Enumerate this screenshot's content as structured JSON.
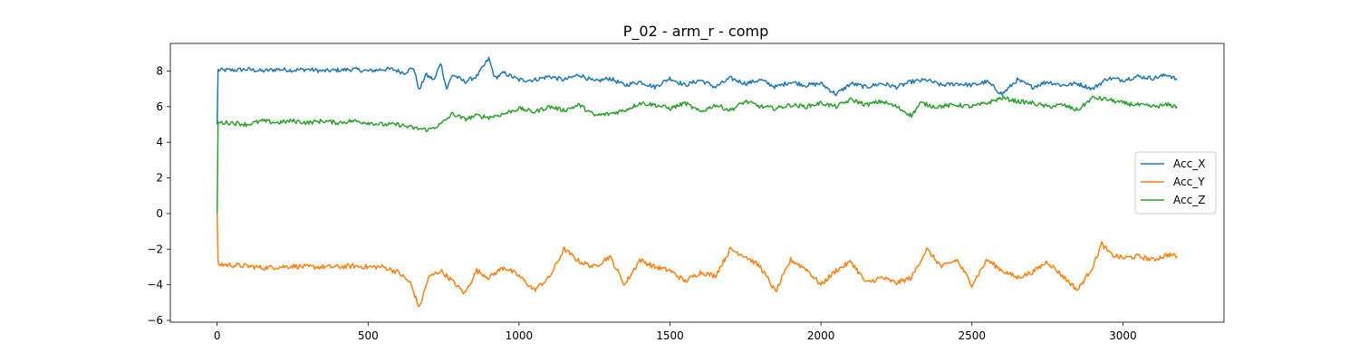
{
  "chart_data": {
    "type": "line",
    "title": "P_02 - arm_r - comp",
    "xlabel": "",
    "ylabel": "",
    "xlim": [
      -155,
      3335
    ],
    "ylim": [
      -6.1,
      9.55
    ],
    "xticks": [
      0,
      500,
      1000,
      1500,
      2000,
      2500,
      3000
    ],
    "yticks": [
      -6,
      -4,
      -2,
      0,
      2,
      4,
      6,
      8
    ],
    "ytick_labels": [
      "−6",
      "−4",
      "−2",
      "0",
      "2",
      "4",
      "6",
      "8"
    ],
    "grid": false,
    "legend_position": "center-right",
    "series": [
      {
        "name": "Acc_X",
        "color": "#1f77b4",
        "points": [
          [
            0,
            5.0
          ],
          [
            3,
            8.05
          ],
          [
            50,
            8.05
          ],
          [
            100,
            8.1
          ],
          [
            150,
            8.0
          ],
          [
            200,
            8.1
          ],
          [
            250,
            8.05
          ],
          [
            300,
            8.1
          ],
          [
            350,
            8.0
          ],
          [
            400,
            8.05
          ],
          [
            450,
            8.1
          ],
          [
            500,
            8.0
          ],
          [
            550,
            8.1
          ],
          [
            580,
            8.1
          ],
          [
            620,
            7.9
          ],
          [
            650,
            8.2
          ],
          [
            670,
            6.9
          ],
          [
            690,
            7.8
          ],
          [
            720,
            7.5
          ],
          [
            740,
            8.5
          ],
          [
            760,
            7.0
          ],
          [
            780,
            7.8
          ],
          [
            820,
            7.4
          ],
          [
            860,
            7.7
          ],
          [
            900,
            8.7
          ],
          [
            920,
            7.6
          ],
          [
            950,
            7.9
          ],
          [
            1000,
            7.5
          ],
          [
            1050,
            7.5
          ],
          [
            1100,
            7.7
          ],
          [
            1150,
            7.5
          ],
          [
            1200,
            7.8
          ],
          [
            1250,
            7.4
          ],
          [
            1300,
            7.6
          ],
          [
            1350,
            7.2
          ],
          [
            1400,
            7.4
          ],
          [
            1450,
            7.1
          ],
          [
            1500,
            7.6
          ],
          [
            1550,
            7.2
          ],
          [
            1600,
            7.5
          ],
          [
            1650,
            7.1
          ],
          [
            1700,
            7.6
          ],
          [
            1750,
            7.3
          ],
          [
            1800,
            7.5
          ],
          [
            1850,
            7.1
          ],
          [
            1900,
            7.4
          ],
          [
            1950,
            7.2
          ],
          [
            2000,
            7.3
          ],
          [
            2050,
            6.7
          ],
          [
            2100,
            7.3
          ],
          [
            2150,
            7.1
          ],
          [
            2200,
            7.3
          ],
          [
            2250,
            7.1
          ],
          [
            2300,
            7.4
          ],
          [
            2350,
            7.5
          ],
          [
            2400,
            7.2
          ],
          [
            2450,
            7.3
          ],
          [
            2500,
            7.2
          ],
          [
            2550,
            7.4
          ],
          [
            2600,
            6.7
          ],
          [
            2650,
            7.5
          ],
          [
            2700,
            7.1
          ],
          [
            2750,
            7.4
          ],
          [
            2800,
            7.2
          ],
          [
            2850,
            7.3
          ],
          [
            2900,
            7.0
          ],
          [
            2950,
            7.6
          ],
          [
            3000,
            7.5
          ],
          [
            3050,
            7.7
          ],
          [
            3100,
            7.6
          ],
          [
            3150,
            7.8
          ],
          [
            3180,
            7.5
          ]
        ]
      },
      {
        "name": "Acc_Y",
        "color": "#ff7f0e",
        "points": [
          [
            0,
            0.0
          ],
          [
            3,
            -2.85
          ],
          [
            50,
            -2.9
          ],
          [
            100,
            -2.95
          ],
          [
            150,
            -3.05
          ],
          [
            200,
            -3.0
          ],
          [
            250,
            -2.95
          ],
          [
            300,
            -3.0
          ],
          [
            350,
            -3.0
          ],
          [
            400,
            -3.0
          ],
          [
            450,
            -2.95
          ],
          [
            500,
            -3.0
          ],
          [
            550,
            -3.0
          ],
          [
            600,
            -3.3
          ],
          [
            640,
            -3.9
          ],
          [
            670,
            -5.3
          ],
          [
            700,
            -3.6
          ],
          [
            740,
            -3.2
          ],
          [
            780,
            -3.8
          ],
          [
            820,
            -4.5
          ],
          [
            860,
            -3.2
          ],
          [
            900,
            -3.6
          ],
          [
            950,
            -3.0
          ],
          [
            1000,
            -3.5
          ],
          [
            1050,
            -4.3
          ],
          [
            1100,
            -3.6
          ],
          [
            1150,
            -2.0
          ],
          [
            1200,
            -2.7
          ],
          [
            1250,
            -3.0
          ],
          [
            1300,
            -2.4
          ],
          [
            1350,
            -4.0
          ],
          [
            1400,
            -2.6
          ],
          [
            1450,
            -3.0
          ],
          [
            1500,
            -3.2
          ],
          [
            1550,
            -3.8
          ],
          [
            1600,
            -3.3
          ],
          [
            1650,
            -3.5
          ],
          [
            1700,
            -2.0
          ],
          [
            1750,
            -2.4
          ],
          [
            1800,
            -3.0
          ],
          [
            1850,
            -4.4
          ],
          [
            1900,
            -2.6
          ],
          [
            1950,
            -3.1
          ],
          [
            2000,
            -4.0
          ],
          [
            2050,
            -3.2
          ],
          [
            2100,
            -2.7
          ],
          [
            2150,
            -3.9
          ],
          [
            2200,
            -3.6
          ],
          [
            2250,
            -3.9
          ],
          [
            2300,
            -3.6
          ],
          [
            2350,
            -2.0
          ],
          [
            2400,
            -3.0
          ],
          [
            2450,
            -2.6
          ],
          [
            2500,
            -4.0
          ],
          [
            2550,
            -2.6
          ],
          [
            2600,
            -3.2
          ],
          [
            2650,
            -3.6
          ],
          [
            2700,
            -3.3
          ],
          [
            2750,
            -2.7
          ],
          [
            2800,
            -3.5
          ],
          [
            2850,
            -4.3
          ],
          [
            2900,
            -3.0
          ],
          [
            2930,
            -1.7
          ],
          [
            2960,
            -2.3
          ],
          [
            3000,
            -2.5
          ],
          [
            3050,
            -2.4
          ],
          [
            3100,
            -2.6
          ],
          [
            3150,
            -2.3
          ],
          [
            3180,
            -2.4
          ]
        ]
      },
      {
        "name": "Acc_Z",
        "color": "#2ca02c",
        "points": [
          [
            0,
            0.0
          ],
          [
            3,
            5.1
          ],
          [
            50,
            5.1
          ],
          [
            100,
            5.0
          ],
          [
            150,
            5.2
          ],
          [
            200,
            5.1
          ],
          [
            250,
            5.2
          ],
          [
            300,
            5.1
          ],
          [
            350,
            5.2
          ],
          [
            400,
            5.1
          ],
          [
            450,
            5.2
          ],
          [
            500,
            5.1
          ],
          [
            550,
            5.0
          ],
          [
            600,
            5.0
          ],
          [
            650,
            4.8
          ],
          [
            700,
            4.7
          ],
          [
            740,
            5.0
          ],
          [
            780,
            5.6
          ],
          [
            820,
            5.3
          ],
          [
            860,
            5.5
          ],
          [
            900,
            5.4
          ],
          [
            950,
            5.6
          ],
          [
            1000,
            5.9
          ],
          [
            1050,
            5.7
          ],
          [
            1100,
            6.0
          ],
          [
            1150,
            5.8
          ],
          [
            1200,
            6.1
          ],
          [
            1250,
            5.5
          ],
          [
            1300,
            5.6
          ],
          [
            1350,
            5.8
          ],
          [
            1400,
            6.2
          ],
          [
            1450,
            6.1
          ],
          [
            1500,
            5.9
          ],
          [
            1550,
            6.2
          ],
          [
            1600,
            5.7
          ],
          [
            1650,
            6.1
          ],
          [
            1700,
            5.8
          ],
          [
            1750,
            6.3
          ],
          [
            1800,
            6.0
          ],
          [
            1850,
            5.9
          ],
          [
            1900,
            6.1
          ],
          [
            1950,
            6.0
          ],
          [
            2000,
            6.2
          ],
          [
            2050,
            6.0
          ],
          [
            2100,
            6.4
          ],
          [
            2150,
            6.1
          ],
          [
            2200,
            6.3
          ],
          [
            2250,
            6.0
          ],
          [
            2300,
            5.5
          ],
          [
            2330,
            6.2
          ],
          [
            2380,
            6.0
          ],
          [
            2450,
            6.1
          ],
          [
            2500,
            6.0
          ],
          [
            2550,
            6.2
          ],
          [
            2600,
            6.5
          ],
          [
            2650,
            6.3
          ],
          [
            2700,
            6.2
          ],
          [
            2750,
            6.0
          ],
          [
            2800,
            6.1
          ],
          [
            2850,
            5.8
          ],
          [
            2900,
            6.5
          ],
          [
            2950,
            6.4
          ],
          [
            3000,
            6.2
          ],
          [
            3050,
            6.1
          ],
          [
            3100,
            6.0
          ],
          [
            3150,
            6.1
          ],
          [
            3180,
            6.0
          ]
        ]
      }
    ]
  }
}
